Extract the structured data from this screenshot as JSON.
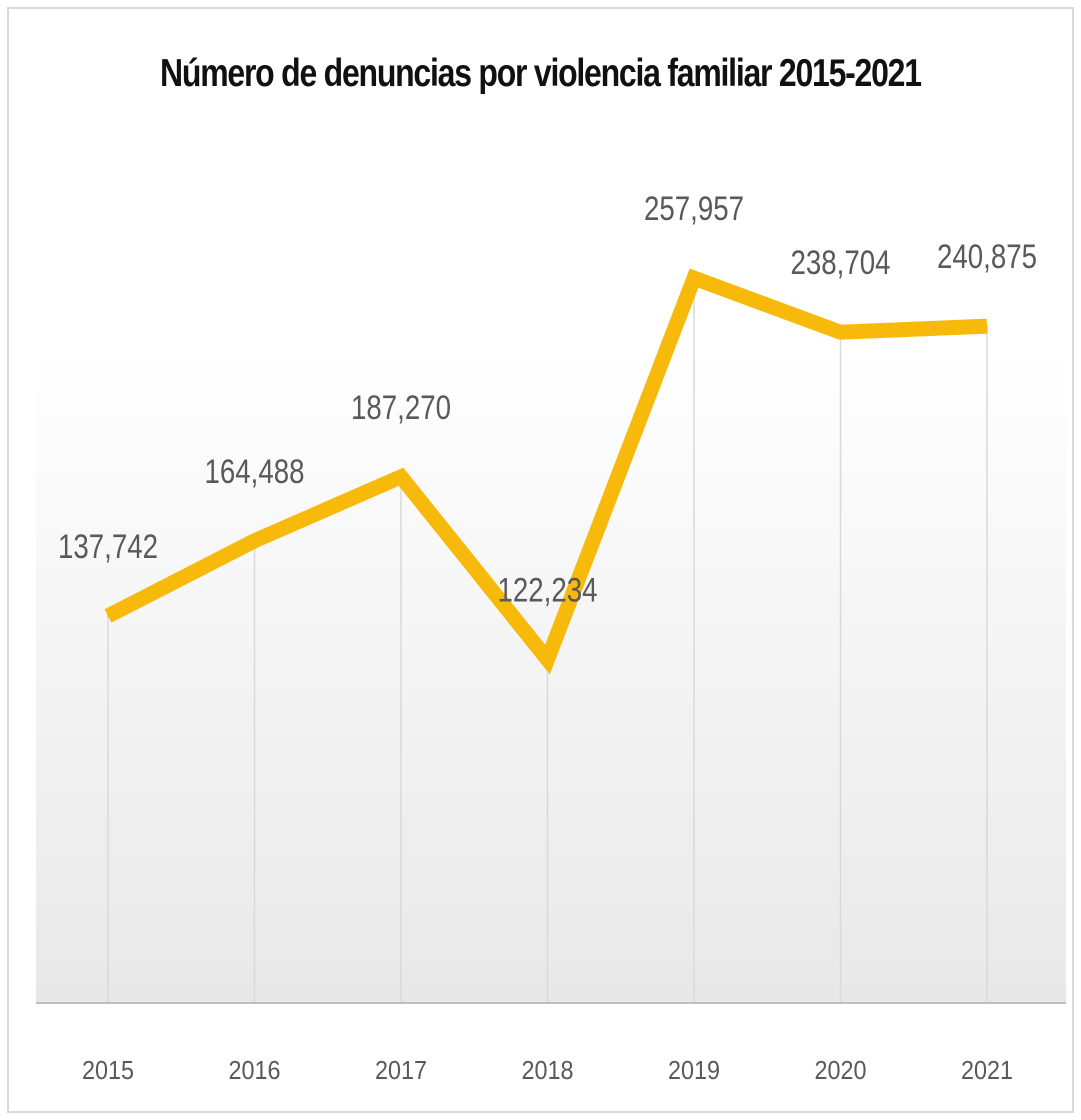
{
  "chart_data": {
    "type": "line",
    "title": "Número de denuncias por violencia familiar 2015-2021",
    "categories": [
      "2015",
      "2016",
      "2017",
      "2018",
      "2019",
      "2020",
      "2021"
    ],
    "values": [
      137742,
      164488,
      187270,
      122234,
      257957,
      238704,
      240875
    ],
    "data_labels": [
      "137,742",
      "164,488",
      "187,270",
      "122,234",
      "257,957",
      "238,704",
      "240,875"
    ],
    "xlabel": "",
    "ylabel": "",
    "ylim": [
      0,
      280000
    ],
    "grid": "vertical",
    "legend": "none",
    "colors": {
      "line": "#F7BA0B",
      "plot_gradient_top": "#ffffff",
      "plot_gradient_bottom": "#e8e8e8",
      "gridline": "#d9d9d9",
      "axis": "#bfbfbf",
      "label": "#595959"
    }
  }
}
